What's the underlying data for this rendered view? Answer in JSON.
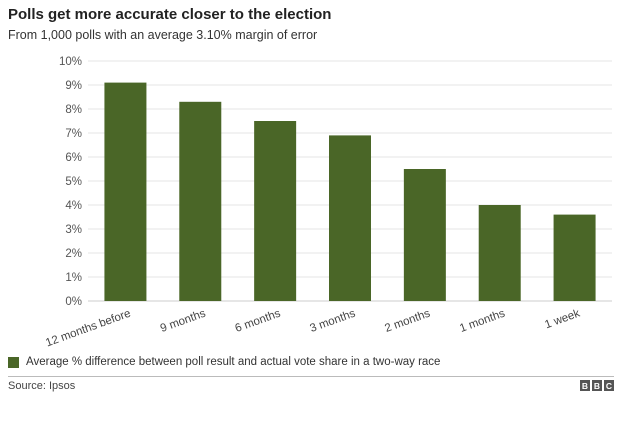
{
  "title": "Polls get more accurate closer to the election",
  "subtitle": "From 1,000 polls with an average 3.10% margin of error",
  "legend_label": "Average % difference between poll result and actual vote share in a two-way race",
  "source": "Source: Ipsos",
  "logo": [
    "B",
    "B",
    "C"
  ],
  "colors": {
    "bar": "#4a6627",
    "grid": "#e6e6e6"
  },
  "chart_data": {
    "type": "bar",
    "categories": [
      "12 months before",
      "9 months",
      "6 months",
      "3 months",
      "2 months",
      "1 months",
      "1 week"
    ],
    "series": [
      {
        "name": "Average % difference between poll result and actual vote share in a two-way race",
        "values": [
          9.1,
          8.3,
          7.5,
          6.9,
          5.5,
          4.0,
          3.6
        ]
      }
    ],
    "yticks": [
      "0%",
      "1%",
      "2%",
      "3%",
      "4%",
      "5%",
      "6%",
      "7%",
      "8%",
      "9%",
      "10%"
    ],
    "ylim": [
      0,
      10
    ],
    "grid": true,
    "legend_position": "bottom-left"
  }
}
